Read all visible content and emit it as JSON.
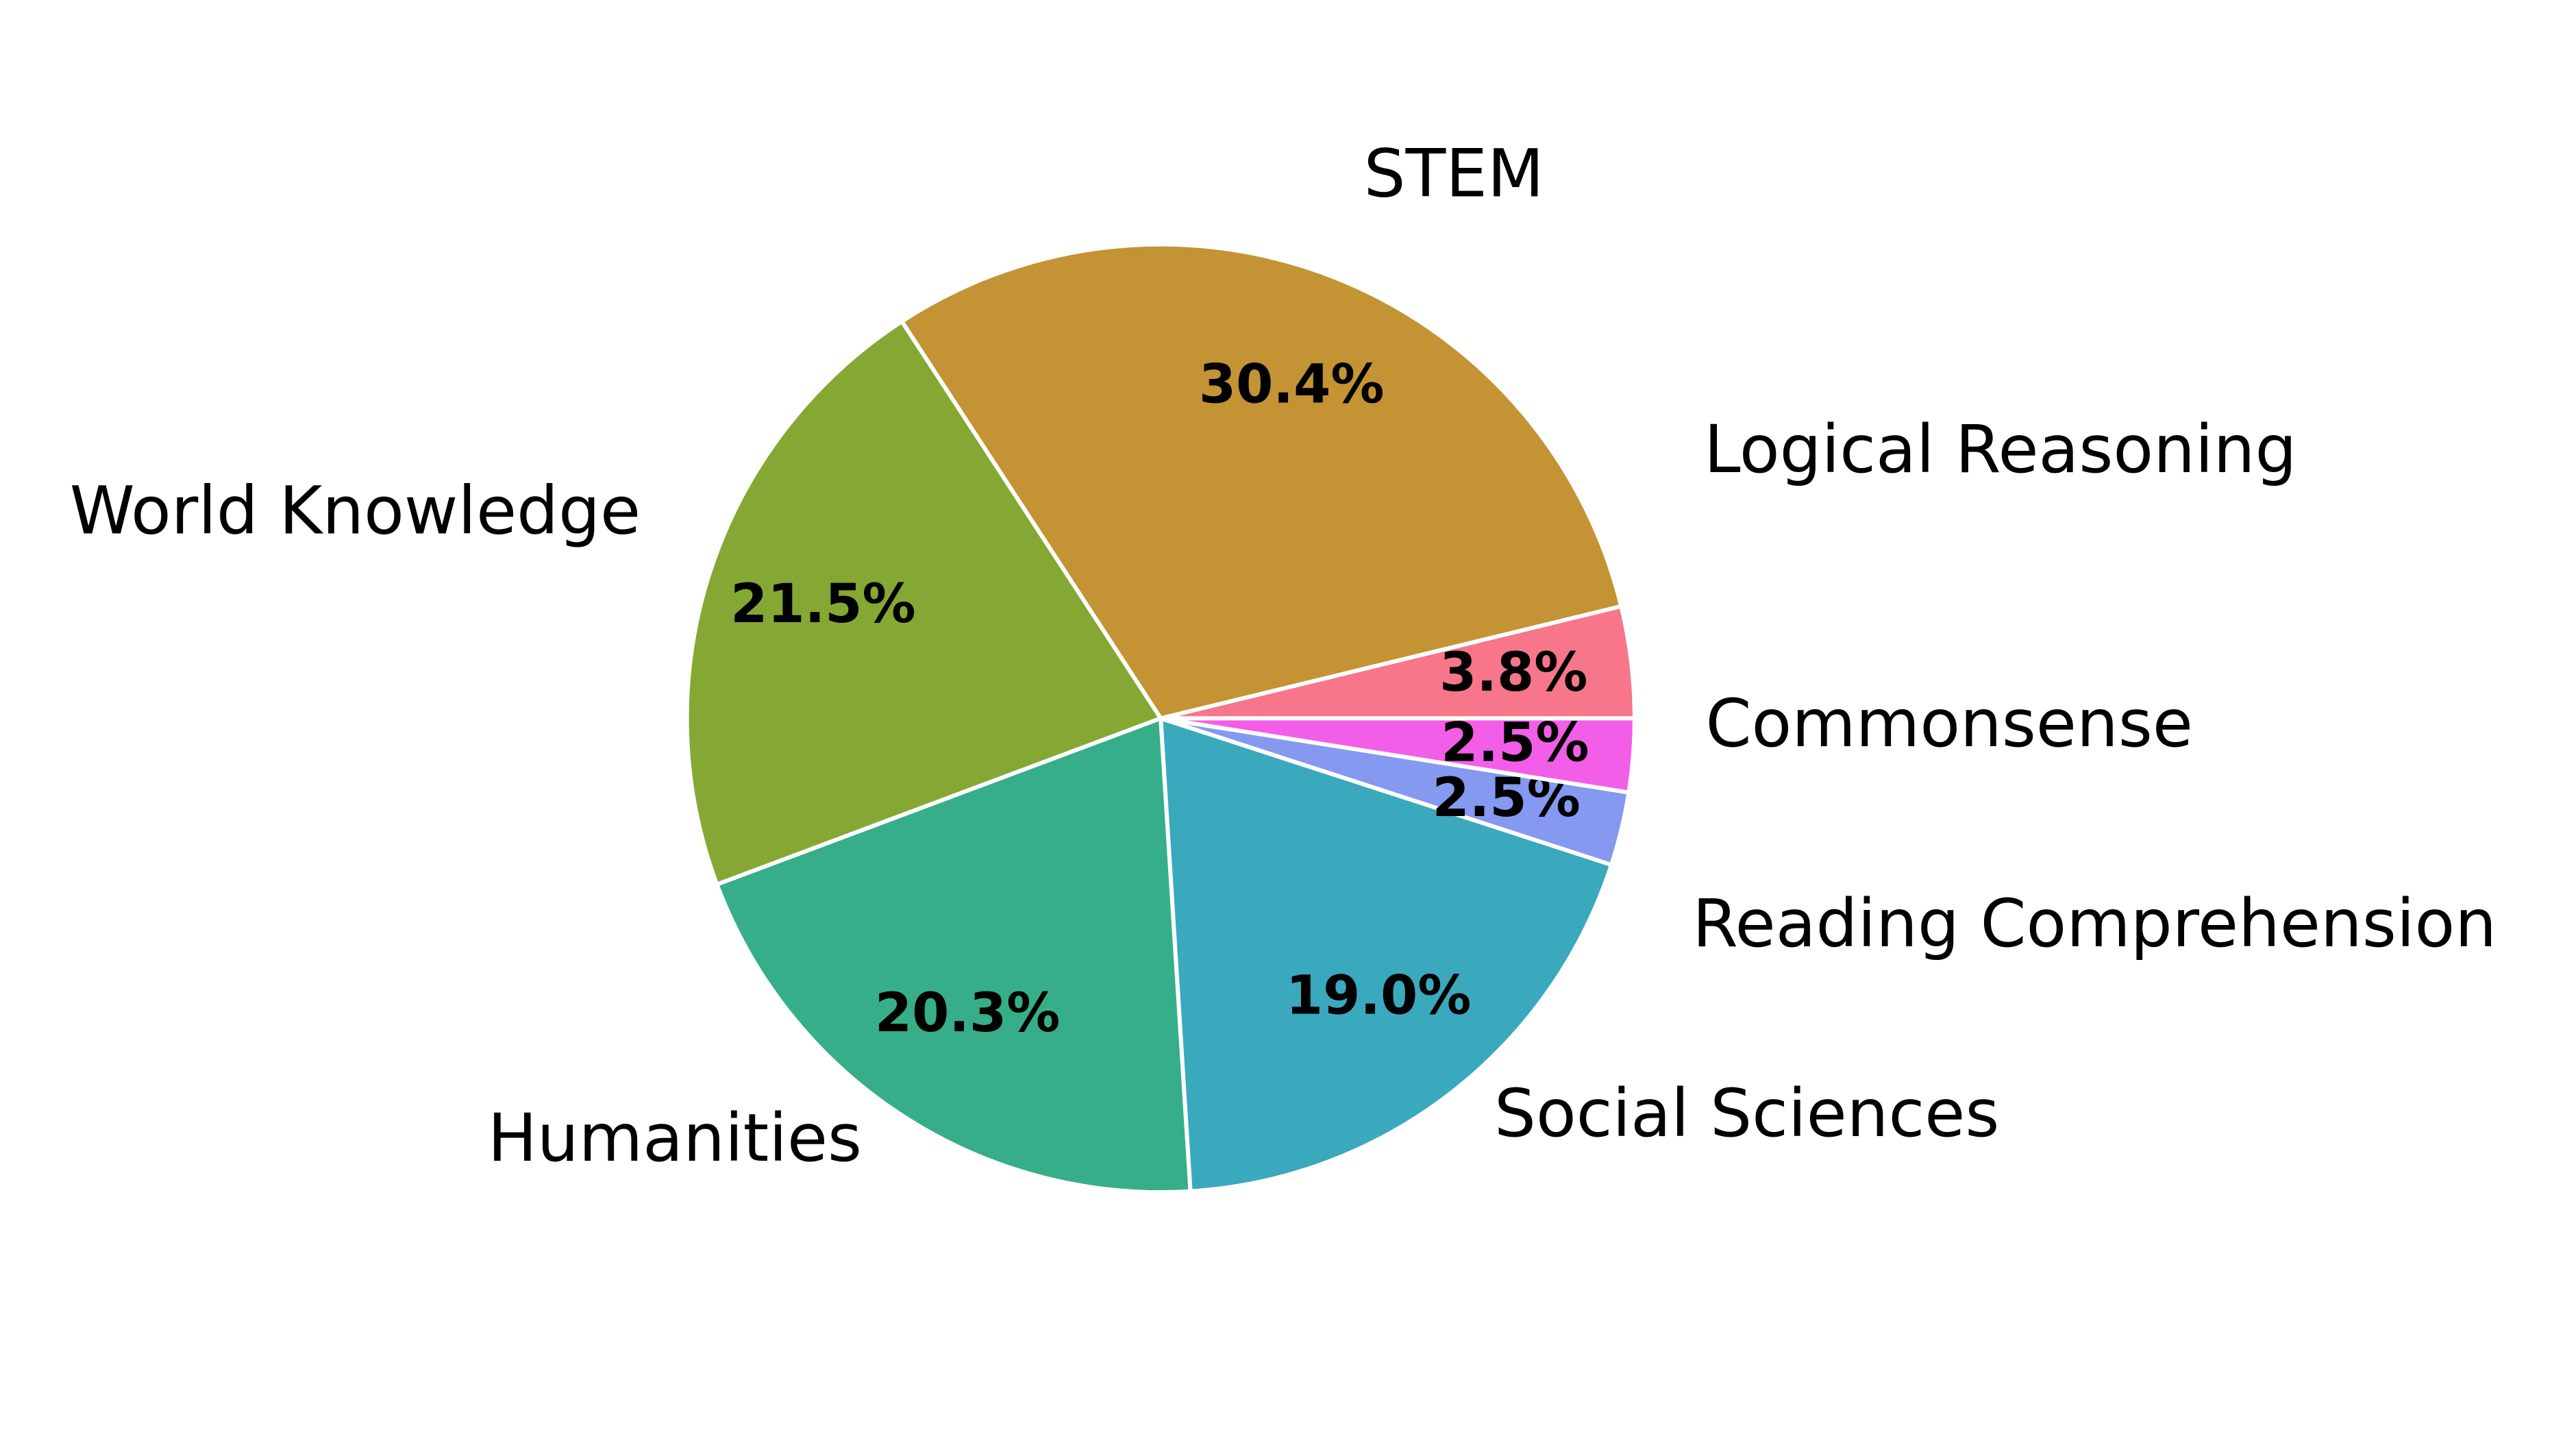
{
  "chart_data": {
    "type": "pie",
    "categories": [
      "Logical Reasoning",
      "STEM",
      "World Knowledge",
      "Humanities",
      "Social Sciences",
      "Reading Comprehension",
      "Commonsense"
    ],
    "values": [
      3.8,
      30.4,
      21.5,
      20.3,
      19.0,
      2.5,
      2.5
    ],
    "value_labels": [
      "3.8%",
      "30.4%",
      "21.5%",
      "20.3%",
      "19.0%",
      "2.5%",
      "2.5%"
    ],
    "colors": [
      "#f7768a",
      "#c49334",
      "#85a834",
      "#36ae8a",
      "#3aa9bd",
      "#8499ef",
      "#f35ee8"
    ]
  }
}
